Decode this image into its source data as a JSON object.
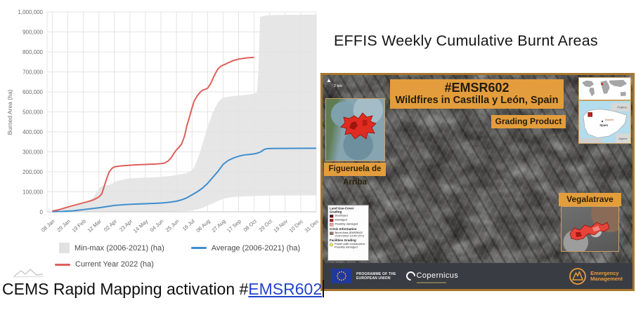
{
  "right_panel": {
    "title": "EFFIS Weekly Cumulative Burnt Areas"
  },
  "caption": {
    "text": "CEMS Rapid Mapping activation #",
    "link": "EMSR602"
  },
  "chart_data": {
    "type": "line",
    "ylabel": "Burned Area (ha)",
    "ylim": [
      0,
      1000000
    ],
    "y_ticks": [
      0,
      100000,
      200000,
      300000,
      400000,
      500000,
      600000,
      700000,
      800000,
      900000,
      1000000
    ],
    "x_tick_labels": [
      "08 Jan",
      "29 Jan",
      "19 Feb",
      "12 Mar",
      "02 Apr",
      "23 Apr",
      "14 May",
      "04 Jun",
      "25 Jun",
      "16 Jul",
      "06 Aug",
      "27 Aug",
      "17 Sep",
      "08 Oct",
      "29 Oct",
      "19 Nov",
      "10 Dec",
      "31 Dec"
    ],
    "x_tick_days": [
      8,
      29,
      50,
      71,
      92,
      113,
      134,
      155,
      176,
      197,
      218,
      239,
      260,
      281,
      302,
      323,
      344,
      365
    ],
    "grid": true,
    "legend_position": "bottom",
    "legend_rows": [
      [
        {
          "label": "Min-max (2006-2021) (ha)",
          "type": "area",
          "color": "#e1e1e1"
        },
        {
          "label": "Average (2006-2021) (ha)",
          "type": "line",
          "color": "#3e8ed0"
        }
      ],
      [
        {
          "label": "Current Year 2022 (ha)",
          "type": "line",
          "color": "#de5f5b"
        }
      ]
    ],
    "series": [
      {
        "name": "Min-max (2006-2021) (ha)",
        "type": "band",
        "color": "#e2e2e2",
        "max": [
          [
            8,
            7000
          ],
          [
            22,
            14000
          ],
          [
            36,
            26000
          ],
          [
            50,
            42000
          ],
          [
            57,
            52000
          ],
          [
            64,
            75000
          ],
          [
            68,
            100000
          ],
          [
            71,
            118000
          ],
          [
            75,
            127000
          ],
          [
            78,
            131000
          ],
          [
            85,
            134000
          ],
          [
            92,
            148000
          ],
          [
            99,
            158000
          ],
          [
            106,
            163000
          ],
          [
            113,
            167000
          ],
          [
            120,
            169000
          ],
          [
            127,
            170000
          ],
          [
            134,
            171000
          ],
          [
            141,
            172000
          ],
          [
            148,
            173000
          ],
          [
            155,
            175000
          ],
          [
            162,
            177000
          ],
          [
            169,
            180000
          ],
          [
            176,
            184000
          ],
          [
            183,
            188000
          ],
          [
            190,
            194000
          ],
          [
            197,
            208000
          ],
          [
            200,
            225000
          ],
          [
            204,
            258000
          ],
          [
            208,
            300000
          ],
          [
            211,
            340000
          ],
          [
            215,
            385000
          ],
          [
            218,
            425000
          ],
          [
            222,
            465000
          ],
          [
            225,
            495000
          ],
          [
            229,
            525000
          ],
          [
            232,
            548000
          ],
          [
            236,
            562000
          ],
          [
            239,
            570000
          ],
          [
            246,
            576000
          ],
          [
            253,
            579000
          ],
          [
            260,
            581000
          ],
          [
            267,
            584000
          ],
          [
            274,
            587000
          ],
          [
            281,
            591000
          ],
          [
            285,
            597000
          ],
          [
            287,
            720000
          ],
          [
            289,
            975000
          ],
          [
            293,
            979000
          ],
          [
            299,
            983000
          ],
          [
            309,
            985000
          ],
          [
            340,
            986000
          ],
          [
            365,
            987000
          ]
        ],
        "min": [
          [
            8,
            500
          ],
          [
            92,
            1000
          ],
          [
            148,
            1500
          ],
          [
            176,
            2500
          ],
          [
            190,
            4000
          ],
          [
            197,
            7000
          ],
          [
            204,
            12000
          ],
          [
            211,
            19000
          ],
          [
            218,
            31000
          ],
          [
            225,
            42000
          ],
          [
            232,
            54000
          ],
          [
            239,
            65000
          ],
          [
            246,
            70000
          ],
          [
            253,
            74000
          ],
          [
            260,
            76000
          ],
          [
            267,
            77000
          ],
          [
            274,
            78000
          ],
          [
            281,
            79000
          ],
          [
            290,
            80000
          ],
          [
            309,
            81000
          ],
          [
            365,
            82000
          ]
        ]
      },
      {
        "name": "Average (2006-2021) (ha)",
        "type": "line",
        "color": "#3e8ed0",
        "points": [
          [
            8,
            1000
          ],
          [
            22,
            2000
          ],
          [
            36,
            5000
          ],
          [
            50,
            11000
          ],
          [
            64,
            17000
          ],
          [
            71,
            20000
          ],
          [
            78,
            24000
          ],
          [
            85,
            28000
          ],
          [
            92,
            32000
          ],
          [
            99,
            34000
          ],
          [
            106,
            36000
          ],
          [
            113,
            37500
          ],
          [
            120,
            38500
          ],
          [
            127,
            39500
          ],
          [
            134,
            40500
          ],
          [
            141,
            41500
          ],
          [
            148,
            42500
          ],
          [
            155,
            44000
          ],
          [
            162,
            46000
          ],
          [
            169,
            49000
          ],
          [
            176,
            53000
          ],
          [
            183,
            60000
          ],
          [
            190,
            70000
          ],
          [
            197,
            85000
          ],
          [
            204,
            100000
          ],
          [
            211,
            118000
          ],
          [
            218,
            142000
          ],
          [
            225,
            172000
          ],
          [
            232,
            202000
          ],
          [
            239,
            237000
          ],
          [
            246,
            257000
          ],
          [
            253,
            269000
          ],
          [
            260,
            278000
          ],
          [
            267,
            284000
          ],
          [
            274,
            287000
          ],
          [
            281,
            290000
          ],
          [
            285,
            293000
          ],
          [
            290,
            300000
          ],
          [
            295,
            313000
          ],
          [
            299,
            316000
          ],
          [
            309,
            317000
          ],
          [
            365,
            318000
          ]
        ]
      },
      {
        "name": "Current Year 2022 (ha)",
        "type": "line",
        "color": "#de5f5b",
        "points": [
          [
            8,
            4000
          ],
          [
            15,
            9000
          ],
          [
            22,
            16000
          ],
          [
            29,
            24000
          ],
          [
            36,
            31000
          ],
          [
            43,
            38000
          ],
          [
            50,
            45000
          ],
          [
            57,
            52000
          ],
          [
            64,
            60000
          ],
          [
            71,
            74000
          ],
          [
            75,
            90000
          ],
          [
            78,
            125000
          ],
          [
            82,
            170000
          ],
          [
            85,
            200000
          ],
          [
            89,
            218000
          ],
          [
            92,
            225000
          ],
          [
            99,
            229000
          ],
          [
            106,
            231000
          ],
          [
            113,
            233000
          ],
          [
            120,
            235000
          ],
          [
            127,
            236000
          ],
          [
            134,
            237000
          ],
          [
            141,
            238000
          ],
          [
            148,
            239000
          ],
          [
            155,
            241000
          ],
          [
            160,
            244000
          ],
          [
            165,
            255000
          ],
          [
            169,
            272000
          ],
          [
            173,
            295000
          ],
          [
            176,
            310000
          ],
          [
            180,
            325000
          ],
          [
            183,
            340000
          ],
          [
            187,
            380000
          ],
          [
            190,
            430000
          ],
          [
            194,
            480000
          ],
          [
            197,
            520000
          ],
          [
            200,
            555000
          ],
          [
            204,
            580000
          ],
          [
            208,
            598000
          ],
          [
            211,
            608000
          ],
          [
            215,
            613000
          ],
          [
            218,
            618000
          ],
          [
            222,
            640000
          ],
          [
            225,
            665000
          ],
          [
            229,
            695000
          ],
          [
            232,
            715000
          ],
          [
            236,
            728000
          ],
          [
            239,
            734000
          ],
          [
            243,
            740000
          ],
          [
            246,
            746000
          ],
          [
            250,
            752000
          ],
          [
            253,
            757000
          ],
          [
            257,
            761000
          ],
          [
            260,
            764000
          ],
          [
            264,
            766000
          ],
          [
            267,
            768000
          ],
          [
            271,
            770000
          ],
          [
            274,
            771000
          ],
          [
            278,
            772000
          ],
          [
            281,
            773000
          ]
        ]
      }
    ]
  },
  "map": {
    "scale_label": "2 km",
    "banner": {
      "line1": "#EMSR602",
      "line2": "Wildfires in Castilla y León, Spain"
    },
    "product_label": "Grading Product",
    "insets": {
      "figueruela": {
        "label": "Figueruela de Arriba"
      },
      "vegalatrave": {
        "label": "Vegalatrave"
      },
      "spain": {
        "france": "France",
        "madrid": "Madrid",
        "spain": "Spain",
        "algeria": "Algeria"
      }
    },
    "legend": {
      "sections": [
        {
          "title": "Land Use-Cover Grading",
          "items": [
            {
              "swatch": "#5e0f10",
              "shape": "square",
              "label": "Destroyed"
            },
            {
              "swatch": "#a51d1d",
              "shape": "square",
              "label": "Damaged"
            },
            {
              "swatch": "#f0a2a2",
              "shape": "square",
              "label": "Possibly damaged"
            }
          ]
        },
        {
          "title": "Crisis Information",
          "items": [
            {
              "swatch": "#97755f",
              "shape": "square",
              "label": "Burnt Area (EMSR602 21/07/2022 10:44 UTC)"
            }
          ]
        },
        {
          "title": "Facilities Grading",
          "items": [
            {
              "swatch": "#ece84e",
              "shape": "circle",
              "label": "Power path construction: Possibly damaged"
            }
          ]
        }
      ]
    },
    "footer": {
      "eu_line1": "PROGRAMME OF THE",
      "eu_line2": "EUROPEAN UNION",
      "copernicus": "Copernicus",
      "emergency_line1": "Emergency",
      "emergency_line2": "Management"
    }
  },
  "colors": {
    "accent_orange": "#e39d3c",
    "link_blue": "#2244cc",
    "avg_blue": "#3e8ed0",
    "year_red": "#de5f5b",
    "band_gray": "#e2e2e2"
  }
}
